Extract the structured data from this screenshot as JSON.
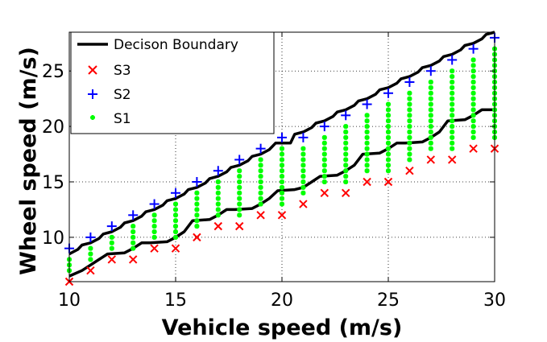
{
  "chart_data": {
    "type": "scatter",
    "xlabel": "Vehicle speed (m/s)",
    "ylabel": "Wheel speed (m/s)",
    "xlim": [
      10,
      30
    ],
    "ylim": [
      6,
      28.5
    ],
    "xticks": [
      10,
      15,
      20,
      25,
      30
    ],
    "yticks": [
      10,
      15,
      20,
      25
    ],
    "grid": true,
    "legend_position": "top-left",
    "series": [
      {
        "name": "Decison Boundary",
        "kind": "line",
        "color": "#000000",
        "lines": [
          {
            "x": [
              10,
              10.4,
              10.6,
              11,
              11.4,
              11.6,
              12,
              12.4,
              12.6,
              13,
              13.4,
              13.6,
              14,
              14.4,
              14.6,
              15,
              15.4,
              15.6,
              16,
              16.4,
              16.6,
              17,
              17.4,
              17.6,
              18,
              18.4,
              18.6,
              19,
              19.4,
              19.7,
              20.4,
              20.6,
              21,
              21.4,
              21.6,
              22,
              22.4,
              22.6,
              23,
              23.4,
              23.6,
              24,
              24.4,
              24.6,
              25,
              25.4,
              25.6,
              26,
              26.4,
              26.6,
              27,
              27.4,
              27.6,
              28,
              28.4,
              28.6,
              29,
              29.4,
              29.6,
              30
            ],
            "y": [
              8.5,
              8.9,
              9.3,
              9.5,
              9.9,
              10.3,
              10.5,
              10.9,
              11.3,
              11.5,
              11.9,
              12.3,
              12.5,
              12.9,
              13.3,
              13.5,
              13.9,
              14.3,
              14.5,
              14.9,
              15.3,
              15.5,
              15.9,
              16.3,
              16.5,
              16.9,
              17.3,
              17.5,
              17.9,
              18.5,
              18.5,
              19.3,
              19.5,
              19.9,
              20.3,
              20.5,
              20.9,
              21.3,
              21.5,
              21.9,
              22.3,
              22.5,
              22.9,
              23.3,
              23.5,
              23.9,
              24.3,
              24.5,
              24.9,
              25.3,
              25.5,
              25.9,
              26.3,
              26.5,
              26.9,
              27.3,
              27.5,
              27.9,
              28.3,
              28.5
            ]
          },
          {
            "x": [
              10,
              10.6,
              11,
              11.4,
              11.8,
              12.6,
              13,
              13.4,
              13.8,
              14.6,
              15,
              15.4,
              15.8,
              16.6,
              17,
              17.4,
              17.8,
              18.6,
              19,
              19.4,
              19.8,
              20.6,
              21,
              21.4,
              21.8,
              22.6,
              23,
              23.4,
              23.8,
              24.6,
              25,
              25.4,
              25.8,
              26.6,
              27,
              27.4,
              27.8,
              28.6,
              29,
              29.4,
              30
            ],
            "y": [
              6.5,
              7.0,
              7.5,
              8.0,
              8.5,
              8.6,
              9.0,
              9.5,
              9.5,
              9.6,
              10.0,
              10.5,
              11.5,
              11.6,
              12.0,
              12.5,
              12.5,
              12.6,
              13.0,
              13.5,
              14.2,
              14.3,
              14.5,
              15.0,
              15.5,
              15.6,
              16.0,
              16.5,
              17.5,
              17.6,
              18.0,
              18.5,
              18.5,
              18.6,
              19.0,
              19.5,
              20.5,
              20.6,
              21.0,
              21.5,
              21.5
            ]
          }
        ]
      },
      {
        "name": "S3",
        "kind": "marker",
        "marker": "x",
        "color": "#ff0000",
        "x": [
          10,
          11,
          12,
          13,
          14,
          15,
          16,
          17,
          18,
          19,
          20,
          21,
          22,
          23,
          24,
          25,
          26,
          27,
          28,
          29,
          30
        ],
        "y": [
          6,
          7,
          8,
          8,
          9,
          9,
          10,
          11,
          11,
          12,
          12,
          13,
          14,
          14,
          15,
          15,
          16,
          17,
          17,
          18,
          18
        ]
      },
      {
        "name": "S2",
        "kind": "marker",
        "marker": "+",
        "color": "#0000ff",
        "x": [
          10,
          11,
          12,
          13,
          14,
          15,
          16,
          17,
          18,
          19,
          20,
          21,
          22,
          23,
          24,
          25,
          26,
          27,
          28,
          29,
          30
        ],
        "y": [
          9,
          10,
          11,
          12,
          13,
          14,
          15,
          16,
          17,
          18,
          19,
          19,
          20,
          21,
          22,
          23,
          24,
          25,
          26,
          27,
          28
        ]
      },
      {
        "name": "S1",
        "kind": "marker",
        "marker": "*",
        "color": "#00ff00",
        "columns": [
          {
            "x": 10,
            "y_from": 7,
            "y_to": 8
          },
          {
            "x": 11,
            "y_from": 8,
            "y_to": 9
          },
          {
            "x": 12,
            "y_from": 9,
            "y_to": 10
          },
          {
            "x": 13,
            "y_from": 9,
            "y_to": 11
          },
          {
            "x": 14,
            "y_from": 10,
            "y_to": 12
          },
          {
            "x": 15,
            "y_from": 10,
            "y_to": 13
          },
          {
            "x": 16,
            "y_from": 11,
            "y_to": 14
          },
          {
            "x": 17,
            "y_from": 12,
            "y_to": 15
          },
          {
            "x": 18,
            "y_from": 12,
            "y_to": 16
          },
          {
            "x": 19,
            "y_from": 13,
            "y_to": 17
          },
          {
            "x": 20,
            "y_from": 13,
            "y_to": 18
          },
          {
            "x": 21,
            "y_from": 14,
            "y_to": 18
          },
          {
            "x": 22,
            "y_from": 15,
            "y_to": 19
          },
          {
            "x": 23,
            "y_from": 15,
            "y_to": 20
          },
          {
            "x": 24,
            "y_from": 16,
            "y_to": 21
          },
          {
            "x": 25,
            "y_from": 16,
            "y_to": 22
          },
          {
            "x": 26,
            "y_from": 17,
            "y_to": 23
          },
          {
            "x": 27,
            "y_from": 18,
            "y_to": 24
          },
          {
            "x": 28,
            "y_from": 18,
            "y_to": 25
          },
          {
            "x": 29,
            "y_from": 19,
            "y_to": 26
          },
          {
            "x": 30,
            "y_from": 19,
            "y_to": 27
          }
        ]
      }
    ]
  }
}
